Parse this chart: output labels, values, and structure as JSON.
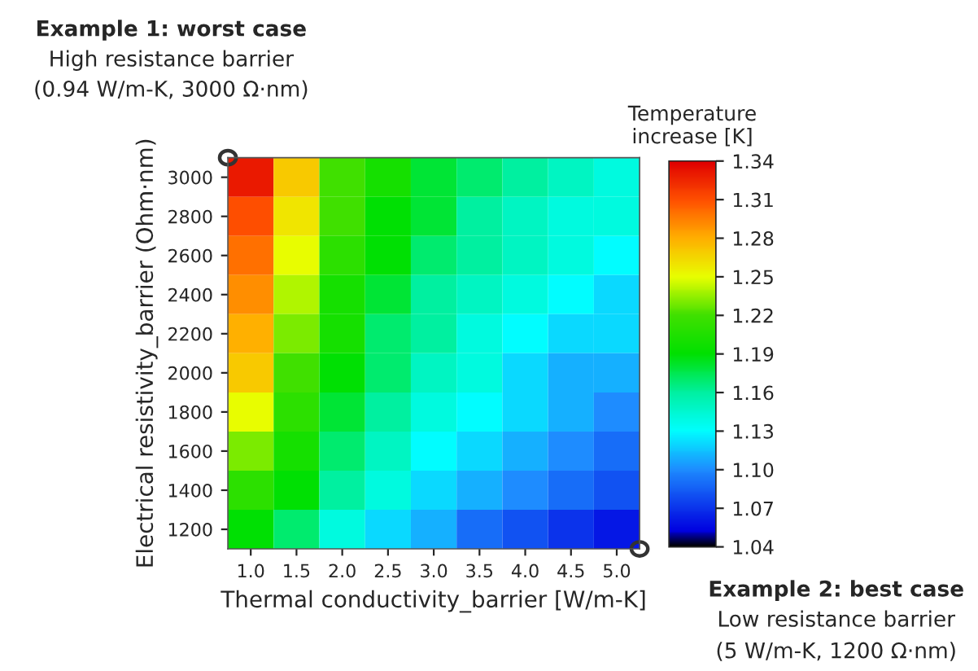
{
  "chart_data": {
    "type": "heatmap",
    "xlabel": "Thermal conductivity_barrier [W/m-K]",
    "ylabel": "Electrical resistivity_barrier (Ohm·nm)",
    "clabel": "Temperature\nincrease [K]",
    "categories": [
      "1.0",
      "1.5",
      "2.0",
      "2.5",
      "3.0",
      "3.5",
      "4.0",
      "4.5",
      "5.0"
    ],
    "y_categories": [
      "3000",
      "2800",
      "2600",
      "2400",
      "2200",
      "2000",
      "1800",
      "1600",
      "1400",
      "1200"
    ],
    "cells": [
      [
        1.33,
        1.27,
        1.22,
        1.2,
        1.18,
        1.17,
        1.16,
        1.15,
        1.14
      ],
      [
        1.31,
        1.26,
        1.22,
        1.19,
        1.18,
        1.16,
        1.15,
        1.14,
        1.14
      ],
      [
        1.3,
        1.25,
        1.21,
        1.19,
        1.17,
        1.16,
        1.15,
        1.14,
        1.13
      ],
      [
        1.29,
        1.24,
        1.2,
        1.18,
        1.16,
        1.15,
        1.14,
        1.13,
        1.12
      ],
      [
        1.28,
        1.23,
        1.2,
        1.17,
        1.16,
        1.14,
        1.13,
        1.12,
        1.12
      ],
      [
        1.27,
        1.22,
        1.19,
        1.17,
        1.15,
        1.14,
        1.12,
        1.11,
        1.11
      ],
      [
        1.25,
        1.21,
        1.18,
        1.16,
        1.14,
        1.13,
        1.12,
        1.11,
        1.1
      ],
      [
        1.23,
        1.2,
        1.17,
        1.15,
        1.13,
        1.12,
        1.11,
        1.1,
        1.09
      ],
      [
        1.21,
        1.19,
        1.16,
        1.14,
        1.12,
        1.11,
        1.1,
        1.09,
        1.08
      ],
      [
        1.19,
        1.17,
        1.14,
        1.12,
        1.11,
        1.09,
        1.08,
        1.07,
        1.06
      ]
    ],
    "clim": [
      1.04,
      1.34
    ],
    "cticks": [
      1.04,
      1.07,
      {
        "value": 1.1,
        "label": "1.10"
      },
      1.13,
      1.16,
      1.19,
      1.22,
      1.25,
      1.28,
      1.31,
      1.34
    ],
    "annotations": [
      "Example 1: worst case",
      "High resistance barrier",
      "(0.94 W/m-K, 3000 Ω·nm)",
      "Example 2: best case",
      "Low resistance barrier",
      "(5 W/m-K, 1200 Ω·nm)"
    ]
  }
}
